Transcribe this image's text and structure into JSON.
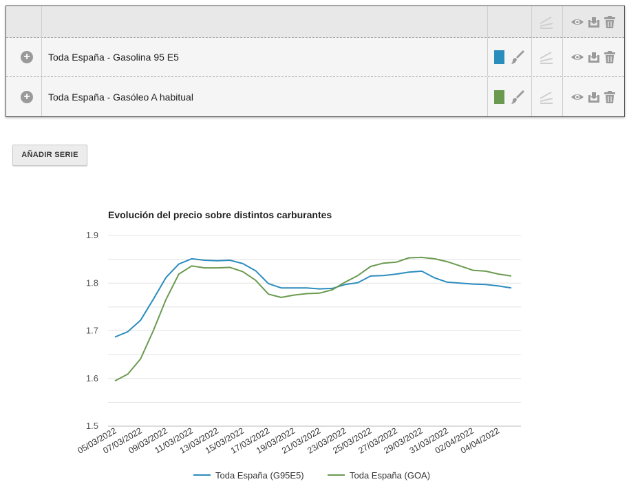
{
  "series_table": {
    "rows": [
      {
        "name": "Toda España - Gasolina 95 E5",
        "color": "#2b8cbe"
      },
      {
        "name": "Toda España - Gasóleo A habitual",
        "color": "#6a9a4f"
      }
    ]
  },
  "add_series_label": "AÑADIR SERIE",
  "chart_data": {
    "type": "line",
    "title": "Evolución del precio sobre distintos carburantes",
    "xlabel": "",
    "ylabel": "",
    "ylim": [
      1.5,
      1.9
    ],
    "yticks": [
      "1.9",
      "1.8",
      "1.7",
      "1.6",
      "1.5"
    ],
    "grid": true,
    "legend_position": "bottom",
    "x_tick_labels": [
      "05/03/2022",
      "07/03/2022",
      "09/03/2022",
      "11/03/2022",
      "13/03/2022",
      "15/03/2022",
      "17/03/2022",
      "19/03/2022",
      "21/03/2022",
      "23/03/2022",
      "25/03/2022",
      "27/03/2022",
      "29/03/2022",
      "31/03/2022",
      "02/04/2022",
      "04/04/2022"
    ],
    "x": [
      "05/03/2022",
      "06/03/2022",
      "07/03/2022",
      "08/03/2022",
      "09/03/2022",
      "10/03/2022",
      "11/03/2022",
      "12/03/2022",
      "13/03/2022",
      "14/03/2022",
      "15/03/2022",
      "16/03/2022",
      "17/03/2022",
      "18/03/2022",
      "19/03/2022",
      "20/03/2022",
      "21/03/2022",
      "22/03/2022",
      "23/03/2022",
      "24/03/2022",
      "25/03/2022",
      "26/03/2022",
      "27/03/2022",
      "28/03/2022",
      "29/03/2022",
      "30/03/2022",
      "31/03/2022",
      "01/04/2022",
      "02/04/2022",
      "03/04/2022",
      "04/04/2022",
      "05/04/2022"
    ],
    "series": [
      {
        "name": "Toda España (G95E5)",
        "color": "#2b8cbe",
        "values": [
          1.687,
          1.698,
          1.722,
          1.766,
          1.812,
          1.84,
          1.851,
          1.848,
          1.847,
          1.848,
          1.841,
          1.826,
          1.799,
          1.79,
          1.79,
          1.79,
          1.788,
          1.789,
          1.797,
          1.801,
          1.815,
          1.816,
          1.819,
          1.823,
          1.825,
          1.811,
          1.802,
          1.8,
          1.798,
          1.797,
          1.794,
          1.79
        ]
      },
      {
        "name": "Toda España (GOA)",
        "color": "#6a9a4f",
        "values": [
          1.595,
          1.609,
          1.641,
          1.7,
          1.766,
          1.819,
          1.836,
          1.832,
          1.832,
          1.833,
          1.824,
          1.806,
          1.777,
          1.77,
          1.775,
          1.778,
          1.779,
          1.786,
          1.802,
          1.816,
          1.835,
          1.842,
          1.844,
          1.853,
          1.854,
          1.851,
          1.845,
          1.836,
          1.827,
          1.825,
          1.819,
          1.815
        ]
      }
    ]
  }
}
